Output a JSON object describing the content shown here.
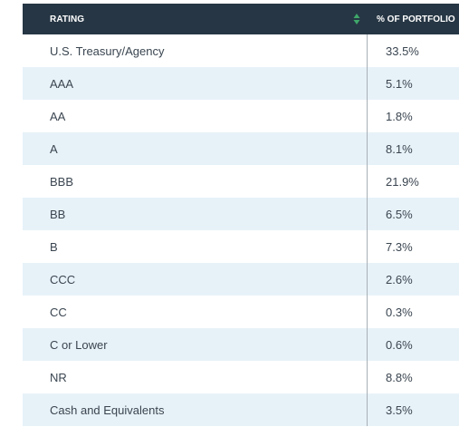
{
  "header": {
    "rating_label": "RATING",
    "percent_label": "% OF PORTFOLIO",
    "sort_icon": "sort-updown-icon"
  },
  "colors": {
    "header_bg": "#263644",
    "header_text": "#ffffff",
    "sort_up": "#3fa86a",
    "sort_down": "#3fa86a",
    "row_alt_bg": "#e7f2f8",
    "row_text": "#3a4550",
    "divider": "#a8b0b6"
  },
  "rows": [
    {
      "rating": "U.S. Treasury/Agency",
      "percent": "33.5%"
    },
    {
      "rating": "AAA",
      "percent": "5.1%"
    },
    {
      "rating": "AA",
      "percent": "1.8%"
    },
    {
      "rating": "A",
      "percent": "8.1%"
    },
    {
      "rating": "BBB",
      "percent": "21.9%"
    },
    {
      "rating": "BB",
      "percent": "6.5%"
    },
    {
      "rating": "B",
      "percent": "7.3%"
    },
    {
      "rating": "CCC",
      "percent": "2.6%"
    },
    {
      "rating": "CC",
      "percent": "0.3%"
    },
    {
      "rating": "C or Lower",
      "percent": "0.6%"
    },
    {
      "rating": "NR",
      "percent": "8.8%"
    },
    {
      "rating": "Cash and Equivalents",
      "percent": "3.5%"
    }
  ]
}
